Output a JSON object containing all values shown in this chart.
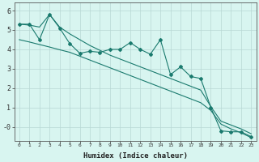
{
  "xlabel": "Humidex (Indice chaleur)",
  "bg_color": "#d8f5f0",
  "line_color": "#1a7a6e",
  "grid_color": "#b8d8d4",
  "xlim": [
    -0.5,
    23.5
  ],
  "ylim": [
    -0.7,
    6.4
  ],
  "x_data": [
    0,
    1,
    2,
    3,
    4,
    5,
    6,
    7,
    8,
    9,
    10,
    11,
    12,
    13,
    14,
    15,
    16,
    17,
    18,
    19,
    20,
    21,
    22,
    23
  ],
  "y_jagged": [
    5.3,
    5.3,
    4.5,
    5.8,
    5.1,
    4.3,
    3.8,
    3.9,
    3.85,
    4.0,
    4.0,
    4.35,
    4.0,
    3.75,
    4.5,
    2.7,
    3.1,
    2.6,
    2.5,
    1.0,
    -0.2,
    -0.25,
    -0.25,
    -0.5
  ],
  "y_upper": [
    5.3,
    5.25,
    5.15,
    5.8,
    5.15,
    4.8,
    4.5,
    4.2,
    3.95,
    3.7,
    3.5,
    3.3,
    3.1,
    2.9,
    2.7,
    2.5,
    2.3,
    2.1,
    1.9,
    1.05,
    0.3,
    0.1,
    -0.1,
    -0.35
  ],
  "y_lower": [
    4.5,
    4.38,
    4.25,
    4.12,
    3.98,
    3.85,
    3.65,
    3.45,
    3.25,
    3.05,
    2.85,
    2.65,
    2.45,
    2.25,
    2.05,
    1.85,
    1.65,
    1.45,
    1.25,
    0.85,
    0.15,
    -0.1,
    -0.3,
    -0.55
  ],
  "yticks": [
    0,
    1,
    2,
    3,
    4,
    5,
    6
  ],
  "ytick_labels": [
    "-0",
    "1",
    "2",
    "3",
    "4",
    "5",
    "6"
  ],
  "xticks": [
    0,
    1,
    2,
    3,
    4,
    5,
    6,
    7,
    8,
    9,
    10,
    11,
    12,
    13,
    14,
    15,
    16,
    17,
    18,
    19,
    20,
    21,
    22,
    23
  ]
}
